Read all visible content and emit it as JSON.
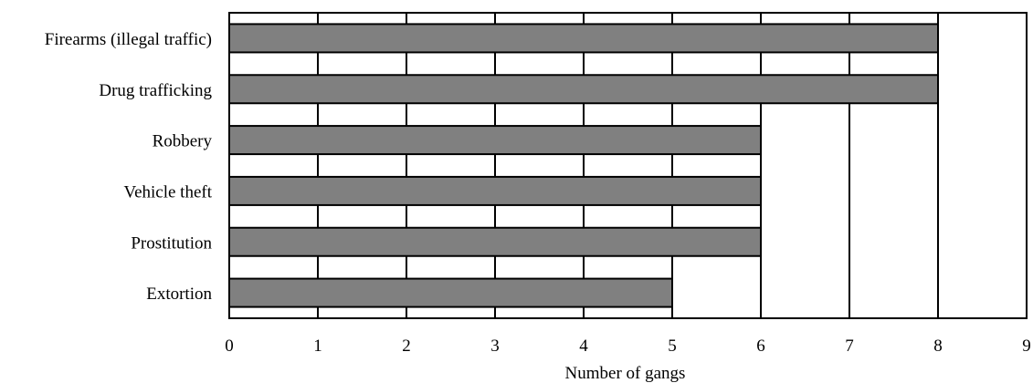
{
  "chart_data": {
    "type": "bar",
    "orientation": "horizontal",
    "title": "",
    "xlabel": "Number of gangs",
    "ylabel": "",
    "categories": [
      "Firearms (illegal traffic)",
      "Drug trafficking",
      "Robbery",
      "Vehicle theft",
      "Prostitution",
      "Extortion"
    ],
    "values": [
      8,
      8,
      6,
      6,
      6,
      5
    ],
    "xlim": [
      0,
      9
    ],
    "xticks": [
      "0",
      "1",
      "2",
      "3",
      "4",
      "5",
      "6",
      "7",
      "8",
      "9"
    ],
    "grid": "vertical",
    "legend": "none",
    "colors": {
      "bar": "#808080",
      "bar_edge": "#000000",
      "grid": "#000000",
      "background": "#ffffff"
    }
  }
}
